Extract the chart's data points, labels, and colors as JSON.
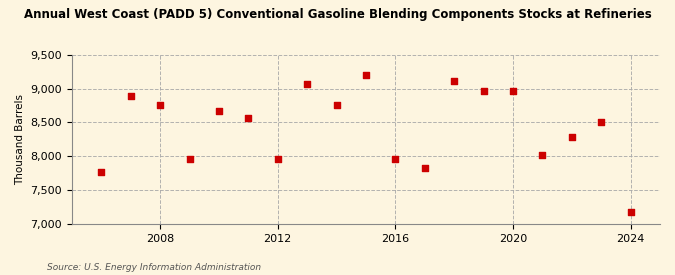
{
  "title": "Annual West Coast (PADD 5) Conventional Gasoline Blending Components Stocks at Refineries",
  "ylabel": "Thousand Barrels",
  "source": "Source: U.S. Energy Information Administration",
  "background_color": "#fdf5e0",
  "years": [
    2006,
    2007,
    2008,
    2009,
    2010,
    2011,
    2012,
    2013,
    2014,
    2015,
    2016,
    2017,
    2018,
    2019,
    2020,
    2021,
    2022,
    2023,
    2024
  ],
  "values": [
    7760,
    8890,
    8760,
    7960,
    8670,
    8560,
    7960,
    9060,
    8760,
    9200,
    7960,
    7820,
    9110,
    8960,
    8960,
    8020,
    8280,
    8510,
    7170
  ],
  "marker_color": "#cc0000",
  "ylim": [
    7000,
    9500
  ],
  "yticks": [
    7000,
    7500,
    8000,
    8500,
    9000,
    9500
  ],
  "xticks": [
    2008,
    2012,
    2016,
    2020,
    2024
  ],
  "xlim": [
    2005,
    2025
  ]
}
